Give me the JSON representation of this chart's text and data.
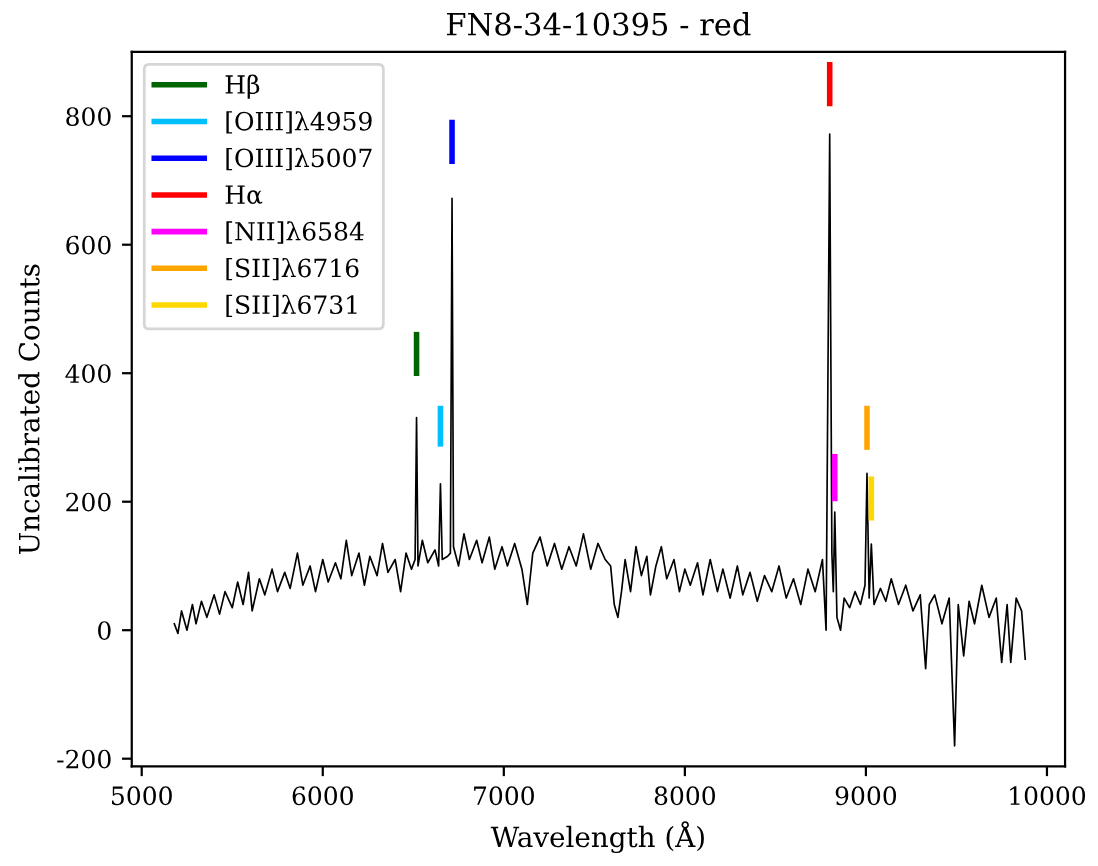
{
  "chart_data": {
    "type": "line",
    "title": "FN8-34-10395 - red",
    "xlabel": "Wavelength (Å)",
    "ylabel": "Uncalibrated Counts",
    "xlim": [
      4945,
      10100
    ],
    "ylim": [
      -212,
      900
    ],
    "xticks": [
      5000,
      6000,
      7000,
      8000,
      9000,
      10000
    ],
    "yticks": [
      -200,
      0,
      200,
      400,
      600,
      800
    ],
    "grid": false,
    "legend": "top left",
    "line_style": "solid",
    "marker": "none",
    "series": [
      {
        "color": "#000000",
        "x": [
          5180,
          5200,
          5220,
          5250,
          5280,
          5300,
          5330,
          5360,
          5400,
          5430,
          5460,
          5500,
          5530,
          5560,
          5590,
          5610,
          5650,
          5680,
          5720,
          5750,
          5790,
          5820,
          5860,
          5890,
          5930,
          5960,
          6000,
          6030,
          6070,
          6100,
          6130,
          6160,
          6200,
          6230,
          6260,
          6300,
          6330,
          6360,
          6400,
          6430,
          6460,
          6490,
          6510,
          6518,
          6526,
          6550,
          6580,
          6620,
          6640,
          6650,
          6660,
          6690,
          6705,
          6714,
          6722,
          6750,
          6780,
          6810,
          6850,
          6880,
          6920,
          6950,
          6990,
          7020,
          7060,
          7100,
          7130,
          7160,
          7200,
          7240,
          7280,
          7320,
          7360,
          7400,
          7440,
          7480,
          7520,
          7560,
          7590,
          7610,
          7630,
          7650,
          7670,
          7700,
          7730,
          7760,
          7790,
          7810,
          7840,
          7870,
          7900,
          7940,
          7970,
          8000,
          8030,
          8070,
          8100,
          8140,
          8180,
          8210,
          8250,
          8290,
          8320,
          8360,
          8400,
          8440,
          8480,
          8520,
          8560,
          8600,
          8640,
          8680,
          8720,
          8760,
          8780,
          8800,
          8812,
          8820,
          8828,
          8840,
          8860,
          8880,
          8910,
          8940,
          8970,
          8995,
          9006,
          9018,
          9030,
          9045,
          9080,
          9110,
          9140,
          9180,
          9220,
          9260,
          9300,
          9330,
          9350,
          9380,
          9420,
          9460,
          9490,
          9510,
          9540,
          9570,
          9600,
          9640,
          9680,
          9720,
          9750,
          9780,
          9800,
          9830,
          9860,
          9880
        ],
        "values": [
          10,
          -5,
          30,
          0,
          40,
          10,
          45,
          20,
          55,
          25,
          60,
          35,
          75,
          40,
          90,
          30,
          80,
          55,
          95,
          60,
          90,
          65,
          120,
          70,
          100,
          60,
          110,
          75,
          105,
          80,
          140,
          85,
          120,
          70,
          115,
          85,
          135,
          90,
          110,
          60,
          120,
          95,
          110,
          331,
          100,
          140,
          105,
          125,
          100,
          228,
          110,
          115,
          120,
          672,
          130,
          100,
          150,
          110,
          140,
          105,
          145,
          95,
          130,
          100,
          135,
          95,
          40,
          120,
          145,
          100,
          135,
          95,
          130,
          100,
          150,
          95,
          135,
          110,
          100,
          40,
          20,
          60,
          110,
          60,
          130,
          85,
          115,
          55,
          100,
          130,
          80,
          110,
          60,
          95,
          70,
          105,
          55,
          110,
          60,
          95,
          50,
          100,
          55,
          90,
          45,
          85,
          60,
          100,
          50,
          80,
          40,
          95,
          60,
          110,
          0,
          772,
          120,
          60,
          184,
          20,
          0,
          50,
          35,
          60,
          40,
          70,
          244,
          50,
          134,
          40,
          65,
          45,
          80,
          40,
          70,
          30,
          55,
          -60,
          40,
          55,
          10,
          50,
          -180,
          40,
          -40,
          45,
          10,
          70,
          20,
          50,
          -50,
          40,
          -50,
          50,
          30,
          -45
        ]
      },
      {
        "name": "Hβ",
        "color": "#006400",
        "x": [
          6518,
          6518
        ],
        "values": [
          400,
          460
        ]
      },
      {
        "name": "[OIII]λ4959",
        "color": "#00bfff",
        "x": [
          6650,
          6650
        ],
        "values": [
          290,
          345
        ]
      },
      {
        "name": "[OIII]λ5007",
        "color": "#0000ff",
        "x": [
          6714,
          6714
        ],
        "values": [
          730,
          790
        ]
      },
      {
        "name": "Hα",
        "color": "#ff0000",
        "x": [
          8800,
          8800
        ],
        "values": [
          820,
          880
        ]
      },
      {
        "name": "[NII]λ6584",
        "color": "#ff00ff",
        "x": [
          8828,
          8828
        ],
        "values": [
          205,
          270
        ]
      },
      {
        "name": "[SII]λ6716",
        "color": "#ffa500",
        "x": [
          9006,
          9006
        ],
        "values": [
          285,
          345
        ]
      },
      {
        "name": "[SII]λ6731",
        "color": "#ffd700",
        "x": [
          9030,
          9030
        ],
        "values": [
          175,
          235
        ]
      }
    ]
  }
}
